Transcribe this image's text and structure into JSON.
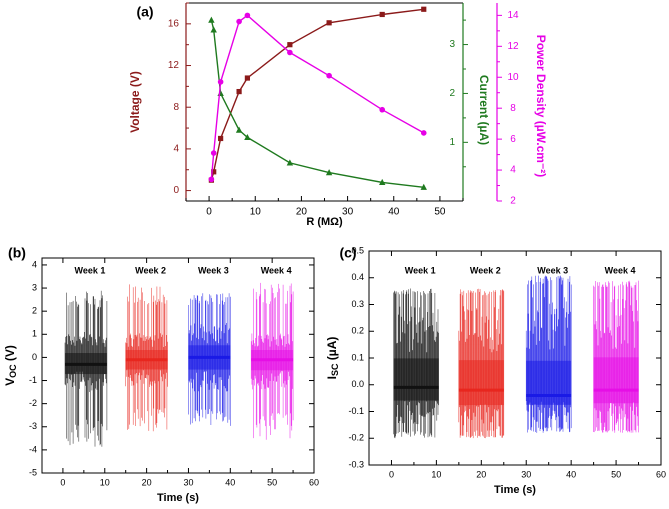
{
  "colors": {
    "voltage": "#8b1a1a",
    "current": "#1f7a1f",
    "power": "#e600e6",
    "week1": "#111111",
    "week2": "#e8261e",
    "week3": "#1a1ae6",
    "week4": "#e60ee6",
    "axis": "#000000"
  },
  "chart_data": [
    {
      "panel": "(a)",
      "type": "line",
      "xlabel": "R (MΩ)",
      "xlim": [
        -5,
        55
      ],
      "xticks": [
        0,
        10,
        20,
        30,
        40,
        50
      ],
      "series": [
        {
          "name": "Voltage (V)",
          "axis": "left",
          "marker": "square",
          "color_key": "voltage",
          "x": [
            0.5,
            1.0,
            2.5,
            6.5,
            8.3,
            17.5,
            26.0,
            37.5,
            46.5
          ],
          "y": [
            1.0,
            1.8,
            5.0,
            9.5,
            10.8,
            14.0,
            16.1,
            16.9,
            17.4
          ]
        },
        {
          "name": "Current (µA)",
          "axis": "right1",
          "marker": "triangle",
          "color_key": "current",
          "x": [
            0.5,
            1.0,
            2.5,
            6.5,
            8.3,
            17.5,
            26.0,
            37.5,
            46.5
          ],
          "y": [
            3.5,
            3.3,
            2.0,
            1.25,
            1.1,
            0.58,
            0.38,
            0.18,
            0.08
          ]
        },
        {
          "name": "Power Density (µW.cm⁻²)",
          "axis": "right2",
          "marker": "circle",
          "color_key": "power",
          "x": [
            0.5,
            1.0,
            2.5,
            6.5,
            8.3,
            17.5,
            26.0,
            37.5,
            46.5
          ],
          "y": [
            3.4,
            5.1,
            9.7,
            13.6,
            14.0,
            11.6,
            10.1,
            7.9,
            6.4
          ]
        }
      ],
      "axes": {
        "left": {
          "label": "Voltage (V)",
          "ylim": [
            -1,
            18
          ],
          "ticks": [
            0,
            4,
            8,
            12,
            16
          ]
        },
        "right1": {
          "label": "Current (µA)",
          "ylim": [
            -0.2,
            3.85
          ],
          "ticks": [
            1,
            2,
            3
          ]
        },
        "right2": {
          "label": "Power Density (µW.cm⁻²)",
          "ylim": [
            2,
            14.8
          ],
          "ticks": [
            2,
            4,
            6,
            8,
            10,
            12,
            14
          ]
        }
      }
    },
    {
      "panel": "(b)",
      "type": "line",
      "xlabel": "Time (s)",
      "ylabel_main": "V",
      "ylabel_sub": "OC",
      "ylabel_unit": " (V)",
      "xlim": [
        -5,
        60
      ],
      "ylim": [
        -5,
        4.3
      ],
      "xticks": [
        0,
        10,
        20,
        30,
        40,
        50,
        60
      ],
      "yticks": [
        -5,
        -4,
        -3,
        -2,
        -1,
        0,
        1,
        2,
        3,
        4
      ],
      "ytick_labels": [
        "-5",
        "-4",
        "-3",
        "-2",
        "-1",
        "0",
        "1",
        "2",
        "3",
        "4"
      ],
      "series": [
        {
          "name": "Week 1",
          "color_key": "week1",
          "t": [
            0.5,
            10.5
          ],
          "max": 2.9,
          "min": -3.9,
          "inner_max": 1.1,
          "inner_min": -1.5,
          "mid": -0.3
        },
        {
          "name": "Week 2",
          "color_key": "week2",
          "t": [
            15,
            25
          ],
          "max": 3.2,
          "min": -3.2,
          "inner_max": 1.1,
          "inner_min": -1.3,
          "mid": -0.1
        },
        {
          "name": "Week 3",
          "color_key": "week3",
          "t": [
            30,
            40
          ],
          "max": 2.8,
          "min": -3.0,
          "inner_max": 1.5,
          "inner_min": -1.5,
          "mid": 0.0
        },
        {
          "name": "Week 4",
          "color_key": "week4",
          "t": [
            45,
            55
          ],
          "max": 3.3,
          "min": -3.6,
          "inner_max": 1.1,
          "inner_min": -1.4,
          "mid": -0.1
        }
      ]
    },
    {
      "panel": "(c)",
      "type": "line",
      "xlabel": "Time (s)",
      "ylabel_main": "I",
      "ylabel_sub": "SC",
      "ylabel_unit": " (µA)",
      "xlim": [
        -5,
        60
      ],
      "ylim": [
        -0.3,
        0.5
      ],
      "xticks": [
        0,
        10,
        20,
        30,
        40,
        50,
        60
      ],
      "yticks": [
        -0.3,
        -0.2,
        -0.1,
        0.0,
        0.1,
        0.2,
        0.3,
        0.4,
        0.5
      ],
      "ytick_labels": [
        "-0.3",
        "-0.2",
        "-0.1",
        "0.0",
        "0.1",
        "0.2",
        "0.3",
        "0.4",
        "0.5"
      ],
      "series": [
        {
          "name": "Week 1",
          "color_key": "week1",
          "t": [
            0.5,
            10.5
          ],
          "max": 0.36,
          "min": -0.2,
          "inner_max": 0.3,
          "inner_min": -0.15,
          "mid": -0.01
        },
        {
          "name": "Week 2",
          "color_key": "week2",
          "t": [
            15,
            25
          ],
          "max": 0.36,
          "min": -0.2,
          "inner_max": 0.3,
          "inner_min": -0.18,
          "mid": -0.02
        },
        {
          "name": "Week 3",
          "color_key": "week3",
          "t": [
            30,
            40
          ],
          "max": 0.41,
          "min": -0.18,
          "inner_max": 0.33,
          "inner_min": -0.14,
          "mid": -0.04
        },
        {
          "name": "Week 4",
          "color_key": "week4",
          "t": [
            45,
            55
          ],
          "max": 0.39,
          "min": -0.18,
          "inner_max": 0.33,
          "inner_min": -0.16,
          "mid": -0.02
        }
      ]
    }
  ]
}
